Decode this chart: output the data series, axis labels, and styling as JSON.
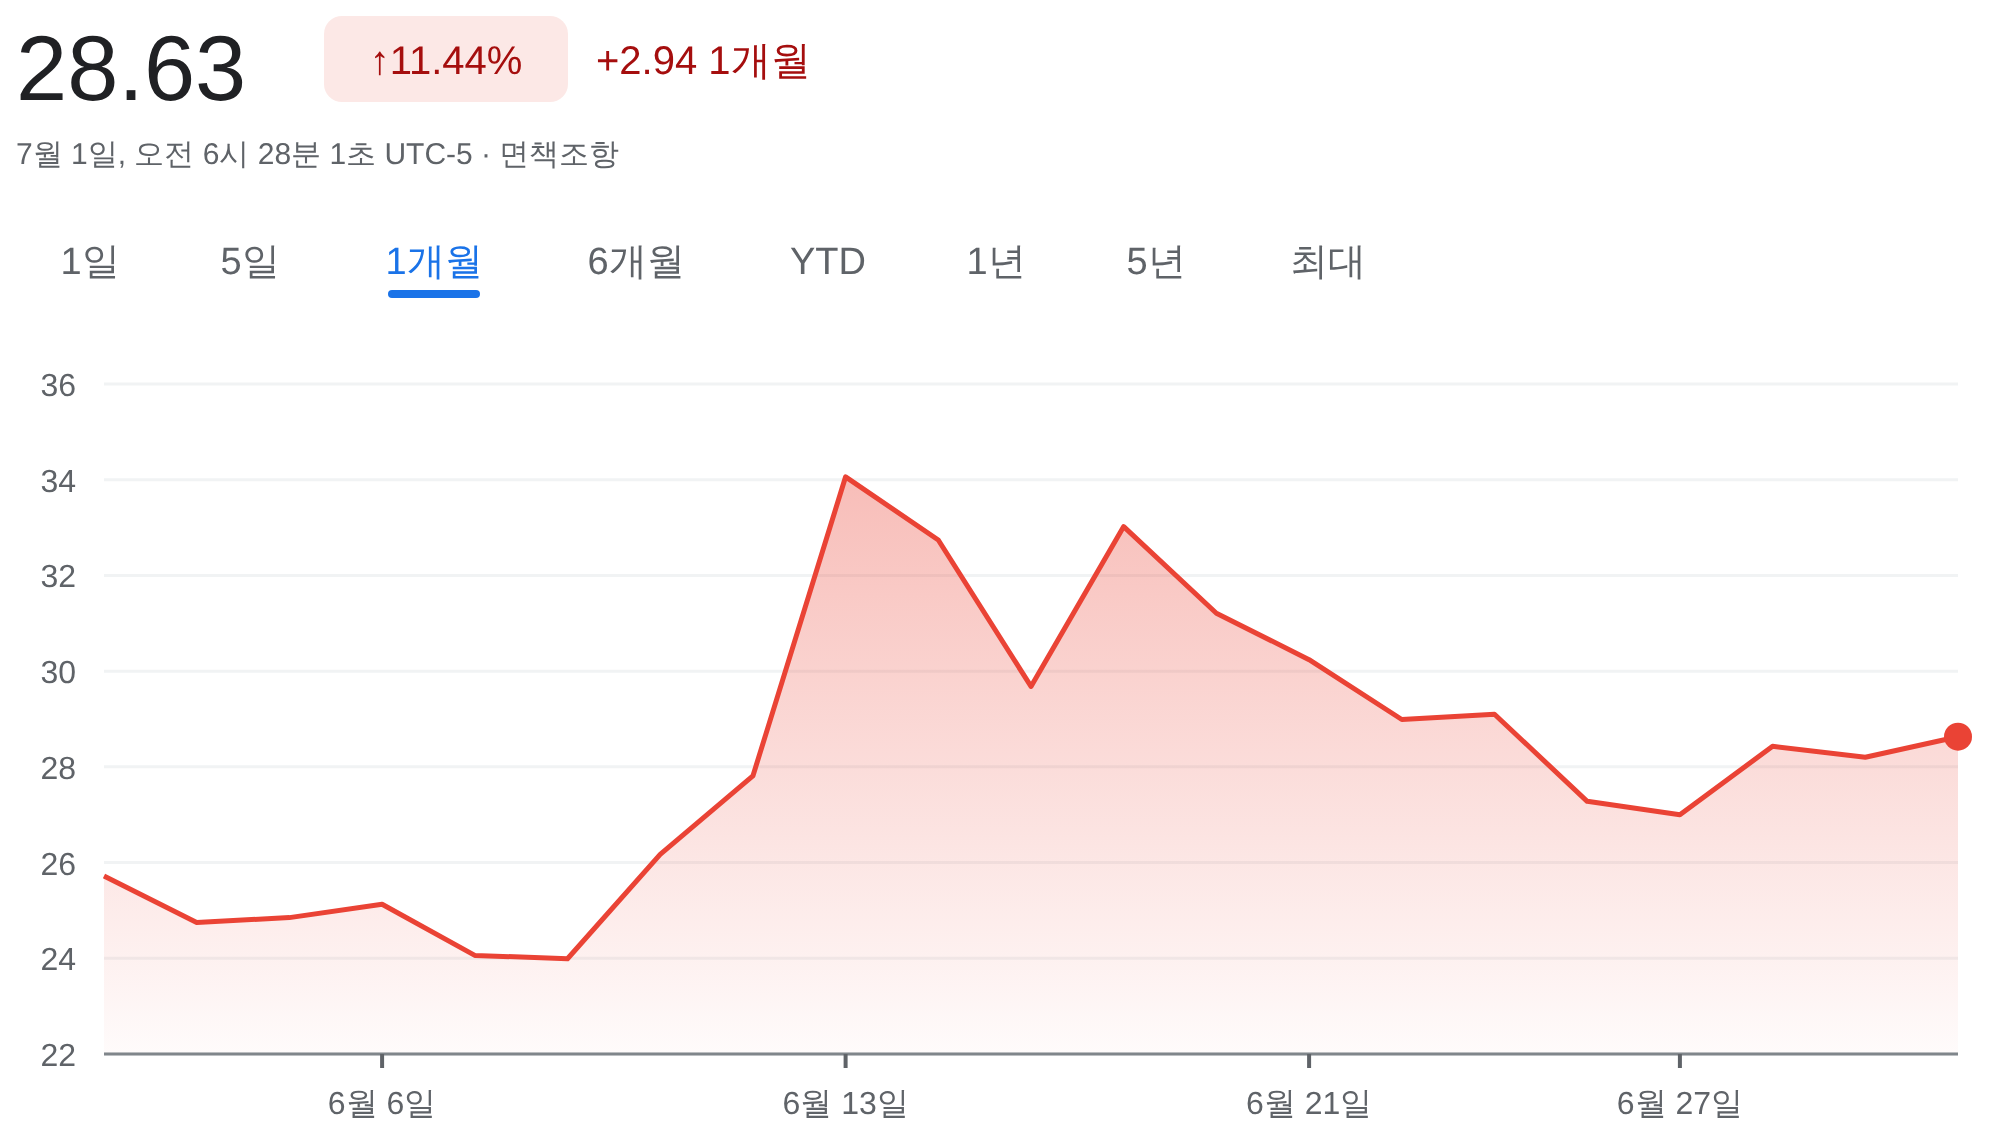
{
  "chart_data": {
    "type": "area",
    "title": "28.63",
    "subtitle": "7월 1일, 오전 6시 28분 1초 UTC-5 · 면책조항",
    "annotations": [
      "↑11.44%",
      "+2.94 1개월",
      "1일",
      "5일",
      "1개월",
      "6개월",
      "YTD",
      "1년",
      "5년",
      "최대"
    ],
    "categories": [
      null,
      null,
      null,
      "6월 6일",
      null,
      null,
      null,
      null,
      "6월 13일",
      null,
      null,
      null,
      null,
      "6월 21일",
      null,
      null,
      null,
      "6월 27일",
      null,
      null,
      null
    ],
    "series": [
      {
        "color": "#ea4335",
        "values": [
          25.72,
          24.75,
          24.85,
          25.13,
          24.06,
          23.99,
          26.17,
          27.81,
          34.06,
          32.74,
          29.68,
          33.02,
          31.21,
          30.24,
          28.99,
          29.1,
          27.28,
          27.0,
          28.43,
          28.2,
          28.63
        ]
      },
      {
        "type": "scatter",
        "marker": "circle",
        "color": "#ea4335",
        "values": [
          null,
          null,
          null,
          null,
          null,
          null,
          null,
          null,
          null,
          null,
          null,
          null,
          null,
          null,
          null,
          null,
          null,
          null,
          null,
          null,
          28.63
        ]
      }
    ],
    "ylim": [
      22,
      36
    ],
    "yticks": [
      22,
      24,
      26,
      28,
      30,
      32,
      34,
      36
    ],
    "grid": "y",
    "line_style": "solid"
  }
}
